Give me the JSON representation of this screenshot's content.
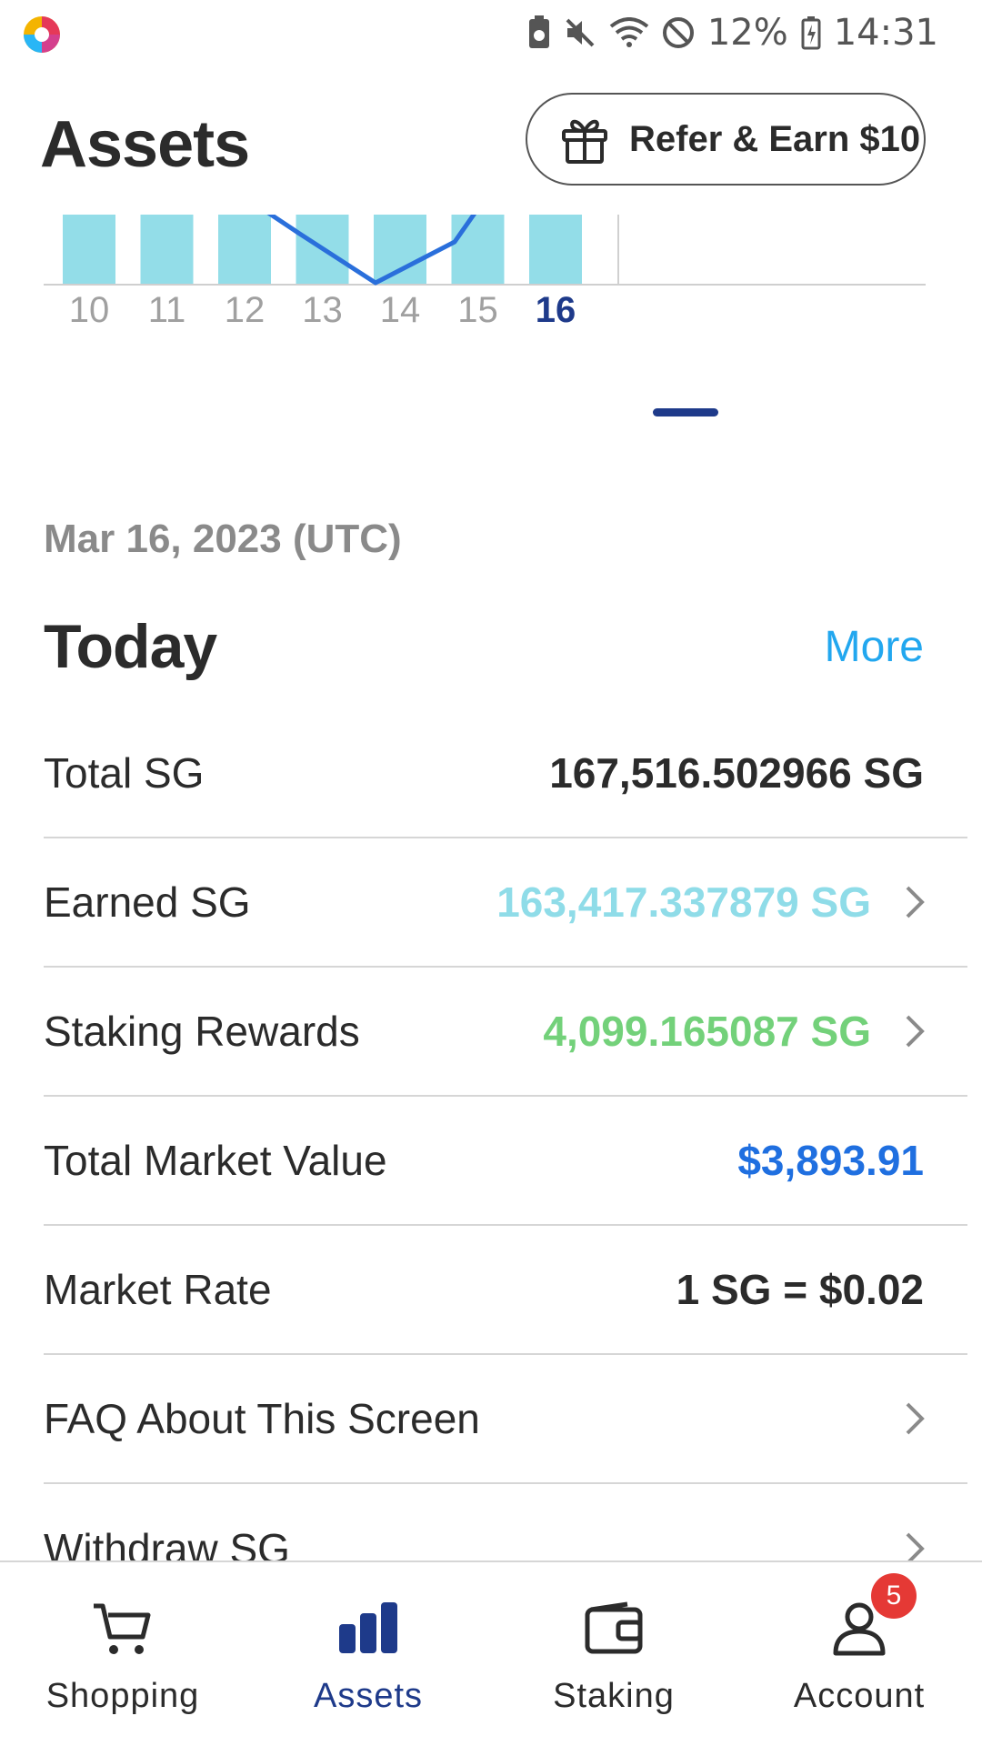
{
  "status_bar": {
    "battery": "12%",
    "time": "14:31"
  },
  "header": {
    "title": "Assets",
    "refer_button": "Refer & Earn $10"
  },
  "chart_data": {
    "type": "bar",
    "categories": [
      "10",
      "11",
      "12",
      "13",
      "14",
      "15",
      "16"
    ],
    "selected_category": "16",
    "bar_color": "#93dde8",
    "line_color": "#2a6fdb",
    "line_points": [
      [
        1.7,
        110
      ],
      [
        2.3,
        90
      ],
      [
        3.0,
        35
      ],
      [
        4.0,
        70
      ],
      [
        4.6,
        120
      ]
    ]
  },
  "date": "Mar 16, 2023 (UTC)",
  "today": {
    "title": "Today",
    "more_link": "More"
  },
  "rows": [
    {
      "label": "Total SG",
      "value": "167,516.502966 SG",
      "has_chevron": false,
      "value_color": "#2b2b2b"
    },
    {
      "label": "Earned SG",
      "value": "163,417.337879 SG",
      "has_chevron": true,
      "value_color": "#8fdce8"
    },
    {
      "label": "Staking Rewards",
      "value": "4,099.165087 SG",
      "has_chevron": true,
      "value_color": "#73d17a"
    },
    {
      "label": "Total Market Value",
      "value": "$3,893.91",
      "has_chevron": false,
      "value_color": "#1f6fe0"
    },
    {
      "label": "Market Rate",
      "value": "1 SG = $0.02",
      "has_chevron": false,
      "value_color": "#2b2b2b"
    },
    {
      "label": "FAQ About This Screen",
      "value": "",
      "has_chevron": true
    },
    {
      "label": "Withdraw SG",
      "value": "",
      "has_chevron": true
    }
  ],
  "bottom_nav": {
    "items": [
      {
        "label": "Shopping",
        "icon": "cart-icon"
      },
      {
        "label": "Assets",
        "icon": "bar-chart-icon",
        "active": true
      },
      {
        "label": "Staking",
        "icon": "wallet-icon"
      },
      {
        "label": "Account",
        "icon": "person-icon",
        "badge": "5"
      }
    ]
  }
}
